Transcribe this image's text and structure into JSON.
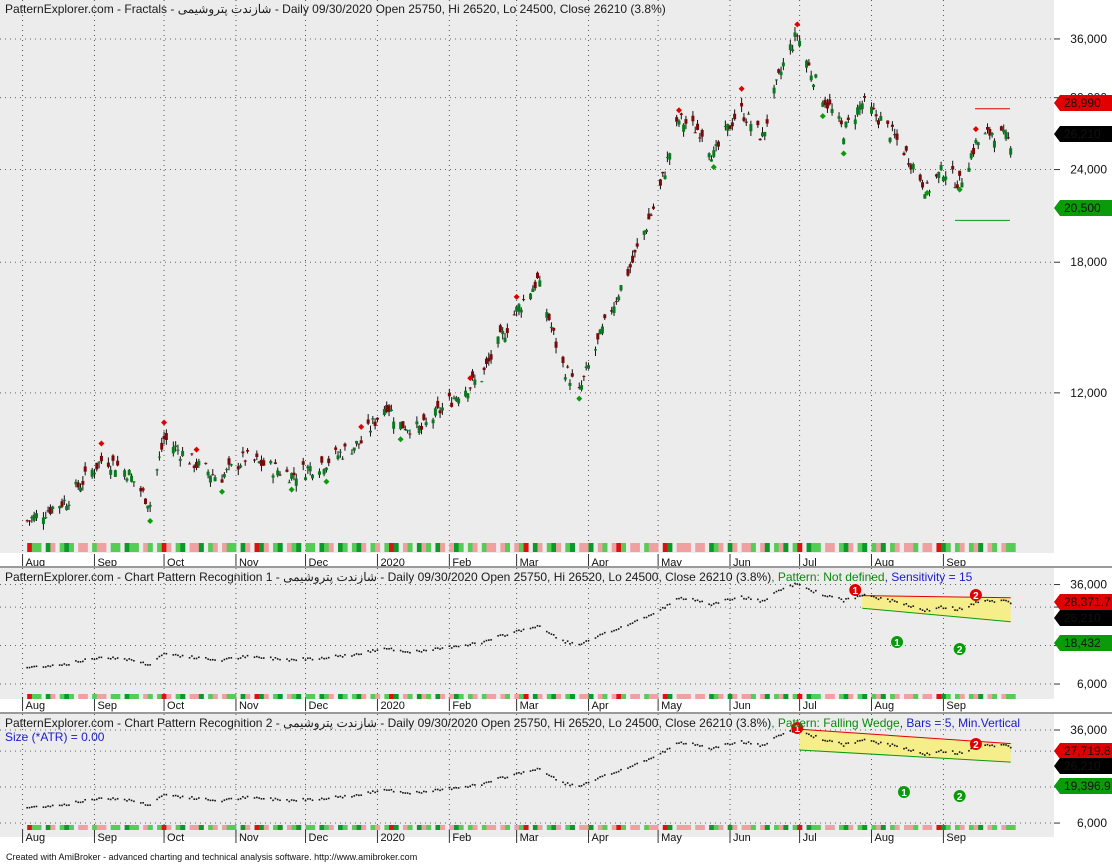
{
  "footer": "Created with AmiBroker - advanced charting and technical analysis software. http://www.amibroker.com",
  "months": [
    "Aug",
    "Sep",
    "Oct",
    "Nov",
    "Dec",
    "2020",
    "Feb",
    "Mar",
    "Apr",
    "May",
    "Jun",
    "Jul",
    "Aug",
    "Sep"
  ],
  "colors": {
    "up": "#0a7a1f",
    "down": "#7a0a0a",
    "red": "#e00000",
    "green": "#0a9a0a",
    "wedge": "#f5ee8a"
  },
  "panes": [
    {
      "title": "PatternExplorer.com - Fractals - شازندت پتروشیمی - Daily 09/30/2020 Open 25750, Hi 26520, Lo 24500, Close 26210 (3.8%)",
      "yticks": [
        "36,000",
        "30,000",
        "24,000",
        "18,000",
        "12,000"
      ],
      "badges": {
        "top": "28,990",
        "last": "26,210",
        "bottom": "20,500"
      }
    },
    {
      "title": "PatternExplorer.com - Chart Pattern Recognition 1 - شازندت پتروشیمی - Daily 09/30/2020 Open 25750, Hi 26520, Lo 24500, Close 26210 (3.8%)",
      "pattern": ", Pattern: Not defined",
      "extra": ", Sensitivity = 15",
      "yticks": [
        "36,000",
        "24,000",
        "12,000",
        "6,000"
      ],
      "badges": {
        "top": "28,371.7",
        "last": "26,210",
        "bottom": "18,432"
      }
    },
    {
      "title": "PatternExplorer.com - Chart Pattern Recognition 2 - شازندت پتروشیمی - Daily 09/30/2020 Open 25750, Hi 26520, Lo 24500, Close 26210 (3.8%)",
      "pattern": ", Pattern: Falling Wedge",
      "extra": ", Bars = 5, Min.Vertical",
      "subline": "Size (*ATR) = 0.00",
      "yticks": [
        "36,000",
        "24,000",
        "12,000",
        "6,000"
      ],
      "badges": {
        "top": "27,719.8",
        "last": "26,210",
        "bottom": "19,396.9"
      }
    }
  ],
  "wedge_markers": [
    {
      "pane": 1,
      "label": "1",
      "color": "red"
    },
    {
      "pane": 1,
      "label": "2",
      "color": "red"
    },
    {
      "pane": 1,
      "label": "1",
      "color": "green"
    },
    {
      "pane": 1,
      "label": "2",
      "color": "green"
    },
    {
      "pane": 2,
      "label": "1",
      "color": "red"
    },
    {
      "pane": 2,
      "label": "2",
      "color": "red"
    },
    {
      "pane": 2,
      "label": "1",
      "color": "green"
    },
    {
      "pane": 2,
      "label": "2",
      "color": "green"
    }
  ],
  "chart_data": {
    "type": "line",
    "series_name": "Close",
    "ohlc_last": {
      "open": 25750,
      "high": 26520,
      "low": 24500,
      "close": 26210,
      "change_pct": 3.8
    },
    "anchors": [
      [
        "2019-08-01",
        8000
      ],
      [
        "2019-08-20",
        8600
      ],
      [
        "2019-09-05",
        9800
      ],
      [
        "2019-09-15",
        9400
      ],
      [
        "2019-09-25",
        8500
      ],
      [
        "2019-10-01",
        10400
      ],
      [
        "2019-10-15",
        9600
      ],
      [
        "2019-10-25",
        9200
      ],
      [
        "2019-11-05",
        9800
      ],
      [
        "2019-11-25",
        9300
      ],
      [
        "2019-12-10",
        9700
      ],
      [
        "2019-12-25",
        10300
      ],
      [
        "2020-01-05",
        11600
      ],
      [
        "2020-01-10",
        10900
      ],
      [
        "2020-01-20",
        10700
      ],
      [
        "2020-02-05",
        12000
      ],
      [
        "2020-02-15",
        12600
      ],
      [
        "2020-03-01",
        15500
      ],
      [
        "2020-03-10",
        17000
      ],
      [
        "2020-03-20",
        13200
      ],
      [
        "2020-03-28",
        12000
      ],
      [
        "2020-04-05",
        14000
      ],
      [
        "2020-04-20",
        18000
      ],
      [
        "2020-05-01",
        22000
      ],
      [
        "2020-05-10",
        28000
      ],
      [
        "2020-05-20",
        27000
      ],
      [
        "2020-05-25",
        25000
      ],
      [
        "2020-06-05",
        29000
      ],
      [
        "2020-06-15",
        26500
      ],
      [
        "2020-06-25",
        34000
      ],
      [
        "2020-06-30",
        36500
      ],
      [
        "2020-07-05",
        33000
      ],
      [
        "2020-07-10",
        30500
      ],
      [
        "2020-07-20",
        27000
      ],
      [
        "2020-07-28",
        29500
      ],
      [
        "2020-08-05",
        28000
      ],
      [
        "2020-08-15",
        25500
      ],
      [
        "2020-08-25",
        22500
      ],
      [
        "2020-09-01",
        24000
      ],
      [
        "2020-09-08",
        23000
      ],
      [
        "2020-09-15",
        26000
      ],
      [
        "2020-09-22",
        27000
      ],
      [
        "2020-09-30",
        26210
      ]
    ]
  }
}
